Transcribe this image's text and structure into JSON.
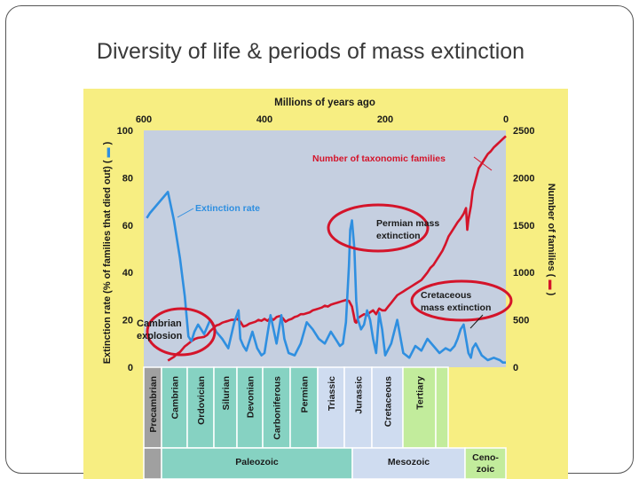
{
  "slide": {
    "title": "Diversity of life & periods of mass extinction"
  },
  "chart_data": {
    "type": "line",
    "title": "",
    "xlabel": "Millions of years ago",
    "x_ticks": [
      "600",
      "400",
      "200",
      "0"
    ],
    "x_tick_values": [
      600,
      400,
      200,
      0
    ],
    "xlim": [
      600,
      0
    ],
    "y_left_label": "Extinction rate (% of families that died out) (",
    "y_left_label_suffix": ")",
    "y_left_ticks": [
      "100",
      "80",
      "60",
      "40",
      "20",
      "0"
    ],
    "y_left_tick_values": [
      100,
      80,
      60,
      40,
      20,
      0
    ],
    "y_left_lim": [
      0,
      100
    ],
    "y_right_label": "Number of families (",
    "y_right_label_suffix": ")",
    "y_right_ticks": [
      "2500",
      "2000",
      "1500",
      "1000",
      "500",
      "0"
    ],
    "y_right_tick_values": [
      2500,
      2000,
      1500,
      1000,
      500,
      0
    ],
    "y_right_lim": [
      0,
      2500
    ],
    "background_color": "#f7ee82",
    "plot_color": "#c5cfe0",
    "series": [
      {
        "name": "Extinction rate",
        "color": "#2f8fe0",
        "axis": "left",
        "x": [
          595,
          590,
          580,
          570,
          560,
          550,
          540,
          532,
          526,
          521,
          516,
          510,
          500,
          490,
          480,
          470,
          460,
          450,
          443,
          440,
          435,
          430,
          420,
          412,
          405,
          400,
          395,
          390,
          380,
          372,
          367,
          360,
          350,
          340,
          330,
          320,
          310,
          300,
          290,
          280,
          275,
          270,
          265,
          260,
          258,
          255,
          251,
          248,
          245,
          240,
          235,
          230,
          225,
          220,
          215,
          210,
          205,
          200,
          190,
          180,
          170,
          160,
          150,
          140,
          130,
          120,
          110,
          100,
          92,
          85,
          80,
          75,
          70,
          66,
          62,
          58,
          55,
          50,
          40,
          30,
          20,
          10,
          5,
          0
        ],
        "y": [
          63,
          65,
          68,
          71,
          74,
          62,
          46,
          30,
          13,
          11,
          15,
          18,
          14,
          20,
          15,
          12,
          8,
          19,
          24,
          12,
          9,
          7,
          15,
          8,
          5,
          6,
          14,
          22,
          10,
          22,
          12,
          6,
          5,
          10,
          19,
          16,
          12,
          10,
          15,
          11,
          9,
          10,
          19,
          43,
          58,
          62,
          50,
          28,
          20,
          16,
          18,
          24,
          20,
          12,
          6,
          23,
          16,
          5,
          10,
          20,
          6,
          4,
          9,
          7,
          12,
          9,
          6,
          8,
          7,
          9,
          12,
          16,
          18,
          12,
          6,
          4,
          8,
          10,
          5,
          3,
          4,
          3,
          2,
          2
        ]
      },
      {
        "name": "Number of taxonomic families",
        "color": "#d4142a",
        "axis": "right",
        "x": [
          560,
          550,
          545,
          540,
          536,
          532,
          528,
          524,
          520,
          515,
          510,
          505,
          500,
          495,
          490,
          485,
          480,
          475,
          470,
          465,
          460,
          455,
          450,
          445,
          440,
          435,
          430,
          425,
          420,
          415,
          410,
          405,
          400,
          395,
          390,
          385,
          380,
          375,
          370,
          365,
          360,
          355,
          350,
          345,
          340,
          335,
          330,
          325,
          320,
          315,
          310,
          305,
          300,
          295,
          290,
          285,
          280,
          275,
          270,
          265,
          260,
          255,
          252,
          250,
          248,
          245,
          240,
          235,
          230,
          225,
          220,
          215,
          210,
          205,
          200,
          195,
          190,
          185,
          180,
          175,
          170,
          165,
          160,
          155,
          150,
          145,
          140,
          135,
          130,
          125,
          120,
          115,
          110,
          105,
          100,
          95,
          90,
          85,
          80,
          75,
          70,
          66,
          64,
          62,
          58,
          55,
          50,
          45,
          40,
          35,
          30,
          25,
          20,
          15,
          10,
          5,
          0
        ],
        "y": [
          70,
          110,
          140,
          160,
          190,
          220,
          240,
          260,
          280,
          300,
          310,
          315,
          320,
          340,
          380,
          410,
          440,
          450,
          470,
          480,
          490,
          500,
          500,
          510,
          480,
          430,
          440,
          460,
          470,
          480,
          500,
          490,
          510,
          490,
          520,
          500,
          530,
          540,
          520,
          480,
          500,
          510,
          530,
          540,
          560,
          560,
          570,
          580,
          600,
          610,
          620,
          630,
          650,
          640,
          660,
          670,
          680,
          690,
          700,
          710,
          700,
          640,
          550,
          480,
          470,
          520,
          540,
          560,
          550,
          580,
          600,
          560,
          620,
          600,
          600,
          640,
          680,
          720,
          760,
          780,
          800,
          820,
          840,
          860,
          880,
          900,
          920,
          960,
          1000,
          1050,
          1080,
          1130,
          1180,
          1230,
          1300,
          1380,
          1430,
          1480,
          1530,
          1570,
          1620,
          1680,
          1450,
          1560,
          1700,
          1860,
          1980,
          2100,
          2150,
          2200,
          2250,
          2280,
          2320,
          2350,
          2380,
          2410,
          2440
        ]
      }
    ],
    "annotations": [
      "Number of taxonomic families",
      "Extinction rate",
      "Permian mass",
      "extinction",
      "Cretaceous",
      "mass extinction",
      "Cambrian",
      "explosion"
    ],
    "periods": [
      {
        "label": "Precambrian",
        "color": "#a0a0a0"
      },
      {
        "label": "Cambrian",
        "color": "#86d2c2"
      },
      {
        "label": "Ordovician",
        "color": "#86d2c2"
      },
      {
        "label": "Silurian",
        "color": "#86d2c2"
      },
      {
        "label": "Devonian",
        "color": "#86d2c2"
      },
      {
        "label": "Carboniferous",
        "color": "#86d2c2"
      },
      {
        "label": "Permian",
        "color": "#86d2c2"
      },
      {
        "label": "Triassic",
        "color": "#cfdcf0"
      },
      {
        "label": "Jurassic",
        "color": "#cfdcf0"
      },
      {
        "label": "Cretaceous",
        "color": "#cfdcf0"
      },
      {
        "label": "Tertiary",
        "color": "#c2ec9c"
      },
      {
        "label": "",
        "color": "#c2ec9c"
      }
    ],
    "eras": [
      {
        "label": "Paleozoic",
        "color": "#86d2c2"
      },
      {
        "label": "Mesozoic",
        "color": "#cfdcf0"
      },
      {
        "label": "Ceno-",
        "label2": "zoic",
        "color": "#c2ec9c"
      }
    ]
  }
}
